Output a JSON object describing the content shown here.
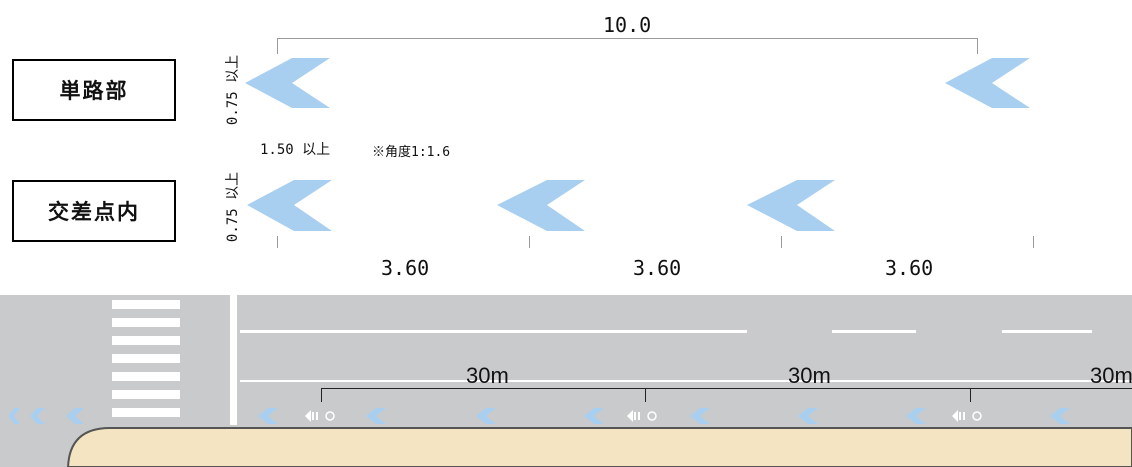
{
  "labels": {
    "single_road": "単路部",
    "intersection": "交差点内"
  },
  "dimensions": {
    "total_length": "10.0",
    "height_top": "0.75 以上",
    "height_bottom": "0.75 以上",
    "width": "1.50 以上",
    "angle_note": "※角度1:1.6",
    "spacing_1": "3.60",
    "spacing_2": "3.60",
    "spacing_3": "3.60"
  },
  "road": {
    "interval_1": "30m",
    "interval_2": "30m",
    "interval_3": "30m"
  },
  "colors": {
    "marking": "#a9cff0",
    "road": "#c9cacb",
    "sidewalk": "#f4e4c1",
    "line": "#ffffff"
  }
}
